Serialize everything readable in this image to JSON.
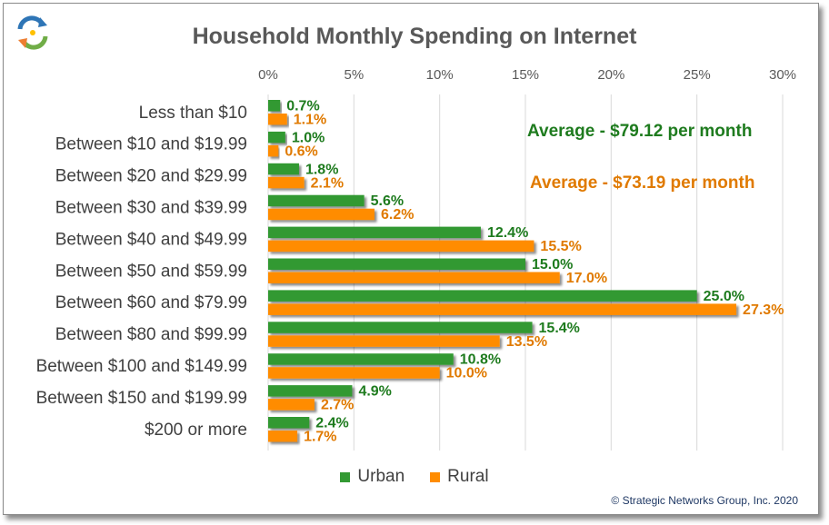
{
  "chart_data": {
    "type": "bar",
    "orientation": "horizontal",
    "title": "Household Monthly Spending on Internet",
    "categories": [
      "Less than $10",
      "Between $10 and $19.99",
      "Between $20 and $29.99",
      "Between $30 and $39.99",
      "Between $40 and $49.99",
      "Between $50 and $59.99",
      "Between $60 and $79.99",
      "Between $80 and $99.99",
      "Between $100 and $149.99",
      "Between $150 and $199.99",
      "$200 or more"
    ],
    "series": [
      {
        "name": "Urban",
        "color": "#339933",
        "label_color": "#1e7b1e",
        "values": [
          0.7,
          1.0,
          1.8,
          5.6,
          12.4,
          15.0,
          25.0,
          15.4,
          10.8,
          4.9,
          2.4
        ],
        "labels": [
          "0.7%",
          "1.0%",
          "1.8%",
          "5.6%",
          "12.4%",
          "15.0%",
          "25.0%",
          "15.4%",
          "10.8%",
          "4.9%",
          "2.4%"
        ]
      },
      {
        "name": "Rural",
        "color": "#ff8c00",
        "label_color": "#e07a00",
        "values": [
          1.1,
          0.6,
          2.1,
          6.2,
          15.5,
          17.0,
          27.3,
          13.5,
          10.0,
          2.7,
          1.7
        ],
        "labels": [
          "1.1%",
          "0.6%",
          "2.1%",
          "6.2%",
          "15.5%",
          "17.0%",
          "27.3%",
          "13.5%",
          "10.0%",
          "2.7%",
          "1.7%"
        ]
      }
    ],
    "xlim": [
      0,
      30
    ],
    "x_ticks": [
      0,
      5,
      10,
      15,
      20,
      25,
      30
    ],
    "x_tick_labels": [
      "0%",
      "5%",
      "10%",
      "15%",
      "20%",
      "25%",
      "30%"
    ],
    "x_axis_position": "top",
    "grid": true,
    "legend_position": "bottom",
    "annotations": [
      {
        "text": "Average - $79.12 per month",
        "series": "Urban"
      },
      {
        "text": "Average - $73.19 per month",
        "series": "Rural"
      }
    ]
  },
  "copyright": "© Strategic Networks Group, Inc. 2020",
  "logo_icon": "recycle-arrows-icon"
}
